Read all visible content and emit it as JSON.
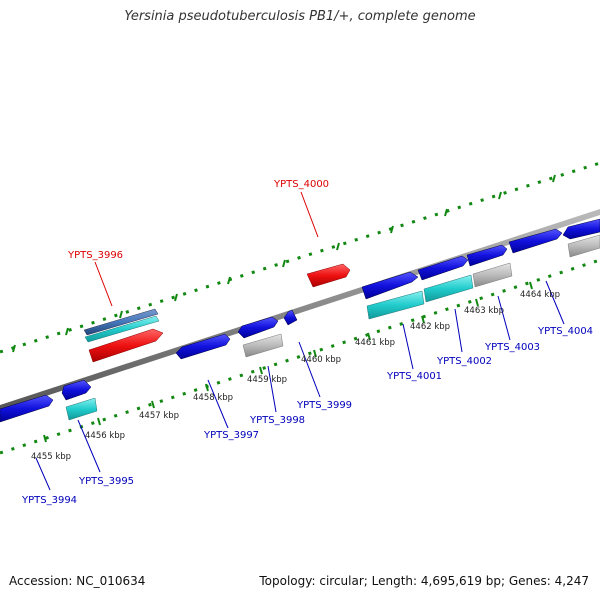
{
  "header": {
    "title": "Yersinia pseudotuberculosis PB1/+, complete genome"
  },
  "footer": {
    "accession": "Accession: NC_010634",
    "summary": "Topology: circular; Length: 4,695,619 bp; Genes: 4,247"
  },
  "colors": {
    "highlight_label": "#dd0000",
    "gene_label": "#0000bb",
    "backbone": "#888888",
    "ticks": "#118811",
    "forward_gene": "#1111dd",
    "reverse_gene": "#1111dd",
    "highlight_gene": "#ee1111",
    "rna_feature": "#22cccc",
    "pseudo_feature": "#bbbbbb",
    "other_feature": "#4477bb"
  },
  "scale_labels": [
    "4455 kbp",
    "4456 kbp",
    "4457 kbp",
    "4458 kbp",
    "4459 kbp",
    "4460 kbp",
    "4461 kbp",
    "4462 kbp",
    "4463 kbp",
    "4464 kbp"
  ],
  "gene_labels": [
    {
      "text": "YPTS_3994",
      "highlight": false
    },
    {
      "text": "YPTS_3995",
      "highlight": false
    },
    {
      "text": "YPTS_3996",
      "highlight": true
    },
    {
      "text": "YPTS_3997",
      "highlight": false
    },
    {
      "text": "YPTS_3998",
      "highlight": false
    },
    {
      "text": "YPTS_3999",
      "highlight": false
    },
    {
      "text": "YPTS_4000",
      "highlight": true
    },
    {
      "text": "YPTS_4001",
      "highlight": false
    },
    {
      "text": "YPTS_4002",
      "highlight": false
    },
    {
      "text": "YPTS_4003",
      "highlight": false
    },
    {
      "text": "YPTS_4004",
      "highlight": false
    }
  ]
}
